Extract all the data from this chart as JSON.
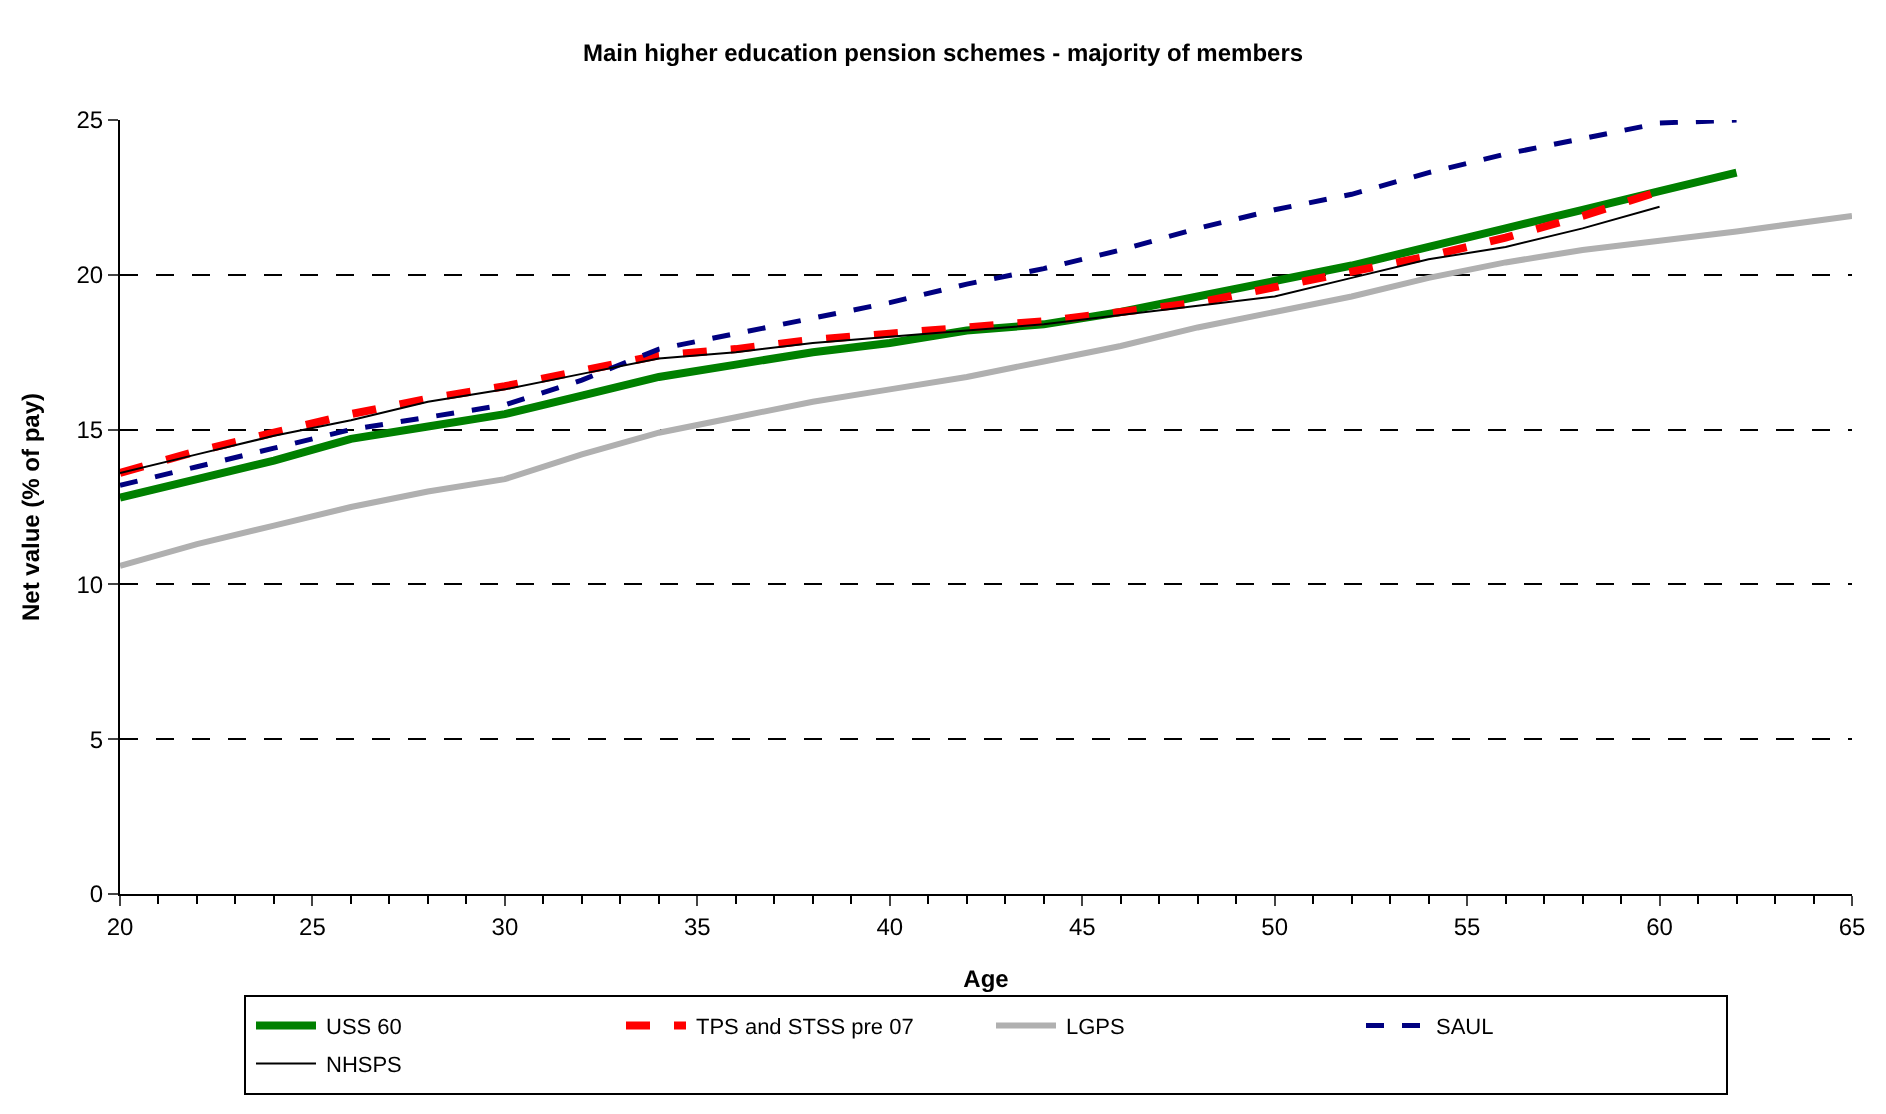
{
  "chart_data": {
    "type": "line",
    "title": "Main higher education pension schemes - majority of members",
    "xlabel": "Age",
    "ylabel": "Net value (% of pay)",
    "xlim": [
      20,
      65
    ],
    "xticks": [
      20,
      25,
      30,
      35,
      40,
      45,
      50,
      55,
      60,
      65
    ],
    "ylim": [
      0,
      25
    ],
    "yticks": [
      0,
      5,
      10,
      15,
      20,
      25
    ],
    "grid": "y",
    "legend": "bottom",
    "marker": "none",
    "series": [
      {
        "name": "USS 60",
        "color": "#008000",
        "line_style": "solid",
        "x": [
          20,
          22,
          24,
          26,
          28,
          30,
          32,
          34,
          36,
          38,
          40,
          42,
          44,
          46,
          48,
          50,
          52,
          54,
          56,
          58,
          60,
          62
        ],
        "values": [
          12.8,
          13.4,
          14.0,
          14.7,
          15.1,
          15.5,
          16.1,
          16.7,
          17.1,
          17.5,
          17.8,
          18.2,
          18.4,
          18.8,
          19.3,
          19.8,
          20.3,
          20.9,
          21.5,
          22.1,
          22.7,
          23.3
        ]
      },
      {
        "name": "TPS and STSS pre 07",
        "color": "#ff0000",
        "line_style": "dashed",
        "x": [
          20,
          22,
          24,
          26,
          28,
          30,
          32,
          34,
          36,
          38,
          40,
          42,
          44,
          46,
          48,
          50,
          52,
          54,
          56,
          58,
          60
        ],
        "values": [
          13.6,
          14.3,
          14.9,
          15.5,
          16.0,
          16.4,
          16.9,
          17.4,
          17.6,
          17.9,
          18.1,
          18.3,
          18.5,
          18.8,
          19.1,
          19.6,
          20.1,
          20.6,
          21.2,
          21.9,
          22.7
        ]
      },
      {
        "name": "LGPS",
        "color": "#b0b0b0",
        "line_style": "solid",
        "x": [
          20,
          22,
          24,
          26,
          28,
          30,
          32,
          34,
          36,
          38,
          40,
          42,
          44,
          46,
          48,
          50,
          52,
          54,
          56,
          58,
          60,
          62,
          65
        ],
        "values": [
          10.6,
          11.3,
          11.9,
          12.5,
          13.0,
          13.4,
          14.2,
          14.9,
          15.4,
          15.9,
          16.3,
          16.7,
          17.2,
          17.7,
          18.3,
          18.8,
          19.3,
          19.9,
          20.4,
          20.8,
          21.1,
          21.4,
          21.9
        ]
      },
      {
        "name": "SAUL",
        "color": "#000080",
        "line_style": "dashed",
        "x": [
          20,
          22,
          24,
          26,
          28,
          30,
          32,
          34,
          36,
          38,
          40,
          42,
          44,
          46,
          48,
          50,
          52,
          54,
          56,
          58,
          60,
          62
        ],
        "values": [
          13.2,
          13.8,
          14.4,
          15.0,
          15.4,
          15.8,
          16.6,
          17.6,
          18.1,
          18.6,
          19.1,
          19.7,
          20.2,
          20.8,
          21.5,
          22.1,
          22.6,
          23.3,
          23.9,
          24.4,
          24.9,
          25.0
        ]
      },
      {
        "name": "NHSPS",
        "color": "#000000",
        "line_style": "solid",
        "x": [
          20,
          22,
          24,
          26,
          28,
          30,
          32,
          34,
          36,
          38,
          40,
          42,
          44,
          46,
          48,
          50,
          52,
          54,
          56,
          58,
          60
        ],
        "values": [
          13.6,
          14.2,
          14.8,
          15.3,
          15.9,
          16.3,
          16.8,
          17.3,
          17.5,
          17.8,
          18.0,
          18.2,
          18.4,
          18.7,
          19.0,
          19.3,
          19.9,
          20.5,
          20.9,
          21.5,
          22.2
        ]
      }
    ]
  }
}
